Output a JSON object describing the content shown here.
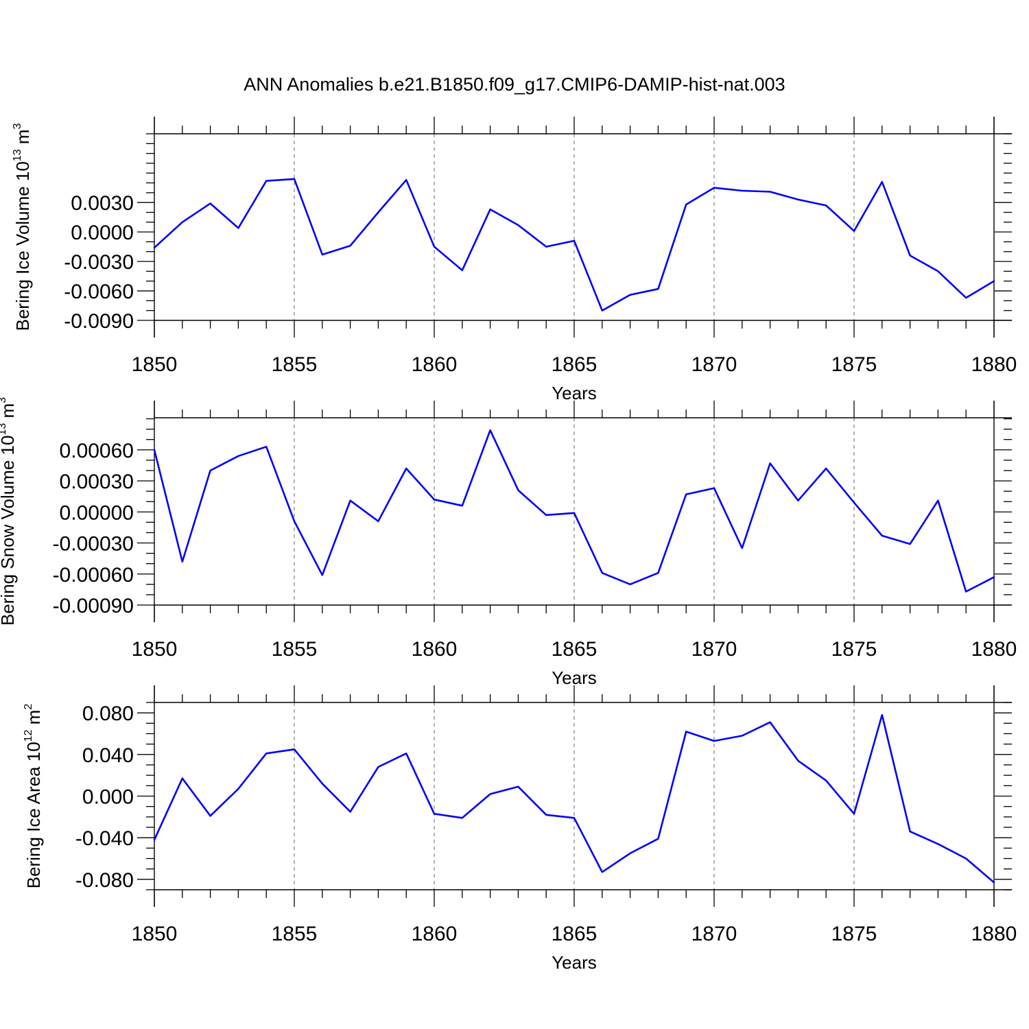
{
  "title": "ANN Anomalies b.e21.B1850.f09_g17.CMIP6-DAMIP-hist-nat.003",
  "colors": {
    "series": "#0000ff",
    "axes": "#000000",
    "grid": "#808080"
  },
  "chart_data": [
    {
      "type": "line",
      "ylabel": {
        "text": "Bering Ice Volume 10",
        "sup": "13",
        "unit": " m",
        "unit_sup": "3"
      },
      "xlabel": "Years",
      "xlim": [
        1850,
        1880
      ],
      "ylim": [
        -0.009,
        0.01
      ],
      "yticks": [
        -0.009,
        -0.006,
        -0.003,
        0.0,
        0.003
      ],
      "ytick_labels": [
        "-0.0090",
        "-0.0060",
        "-0.0030",
        "0.0000",
        "0.0030"
      ],
      "ytick_minor_step": 0.001,
      "xticks": [
        1850,
        1855,
        1860,
        1865,
        1870,
        1875,
        1880
      ],
      "xtick_labels": [
        "1850",
        "1855",
        "1860",
        "1865",
        "1870",
        "1875",
        "1880"
      ],
      "grid": "dashed vertical at major x ticks",
      "x": [
        1850,
        1851,
        1852,
        1853,
        1854,
        1855,
        1856,
        1857,
        1858,
        1859,
        1860,
        1861,
        1862,
        1863,
        1864,
        1865,
        1866,
        1867,
        1868,
        1869,
        1870,
        1871,
        1872,
        1873,
        1874,
        1875,
        1876,
        1877,
        1878,
        1879,
        1880
      ],
      "y": [
        -0.0016,
        0.001,
        0.0029,
        0.0004,
        0.0052,
        0.0054,
        -0.0023,
        -0.0014,
        0.002,
        0.0053,
        -0.0015,
        -0.0039,
        0.0023,
        0.0007,
        -0.0015,
        -0.0009,
        -0.008,
        -0.0064,
        -0.0058,
        0.0028,
        0.0045,
        0.0042,
        0.0041,
        0.0033,
        0.0027,
        0.0001,
        0.0051,
        -0.0024,
        -0.004,
        -0.0067,
        -0.005
      ]
    },
    {
      "type": "line",
      "ylabel": {
        "text": "Bering Snow Volume 10",
        "sup": "13",
        "unit": " m",
        "unit_sup": "3"
      },
      "xlabel": "Years",
      "xlim": [
        1850,
        1880
      ],
      "ylim": [
        -0.0009,
        0.00091
      ],
      "yticks": [
        -0.0009,
        -0.0006,
        -0.0003,
        0.0,
        0.0003,
        0.0006
      ],
      "ytick_labels": [
        "-0.00090",
        "-0.00060",
        "-0.00030",
        "0.00000",
        "0.00030",
        "0.00060"
      ],
      "ytick_minor_step": 0.0001,
      "xticks": [
        1850,
        1855,
        1860,
        1865,
        1870,
        1875,
        1880
      ],
      "xtick_labels": [
        "1850",
        "1855",
        "1860",
        "1865",
        "1870",
        "1875",
        "1880"
      ],
      "grid": "dashed vertical at major x ticks",
      "x": [
        1850,
        1851,
        1852,
        1853,
        1854,
        1855,
        1856,
        1857,
        1858,
        1859,
        1860,
        1861,
        1862,
        1863,
        1864,
        1865,
        1866,
        1867,
        1868,
        1869,
        1870,
        1871,
        1872,
        1873,
        1874,
        1875,
        1876,
        1877,
        1878,
        1879,
        1880
      ],
      "y": [
        0.0006,
        -0.00048,
        0.0004,
        0.00054,
        0.00063,
        -9e-05,
        -0.00061,
        0.00011,
        -9e-05,
        0.00042,
        0.00012,
        6e-05,
        0.00079,
        0.00021,
        -3e-05,
        -1e-05,
        -0.00059,
        -0.0007,
        -0.00059,
        0.00017,
        0.00023,
        -0.00035,
        0.00047,
        0.00011,
        0.00042,
        9e-05,
        -0.00023,
        -0.00031,
        0.00011,
        -0.00077,
        -0.00063
      ]
    },
    {
      "type": "line",
      "ylabel": {
        "text": "Bering Ice Area 10",
        "sup": "12",
        "unit": " m",
        "unit_sup": "2"
      },
      "xlabel": "Years",
      "xlim": [
        1850,
        1880
      ],
      "ylim": [
        -0.09,
        0.09
      ],
      "yticks": [
        -0.08,
        -0.04,
        0.0,
        0.04,
        0.08
      ],
      "ytick_labels": [
        "-0.080",
        "-0.040",
        "0.000",
        "0.040",
        "0.080"
      ],
      "ytick_minor_step": 0.01,
      "xticks": [
        1850,
        1855,
        1860,
        1865,
        1870,
        1875,
        1880
      ],
      "xtick_labels": [
        "1850",
        "1855",
        "1860",
        "1865",
        "1870",
        "1875",
        "1880"
      ],
      "grid": "dashed vertical at major x ticks",
      "x": [
        1850,
        1851,
        1852,
        1853,
        1854,
        1855,
        1856,
        1857,
        1858,
        1859,
        1860,
        1861,
        1862,
        1863,
        1864,
        1865,
        1866,
        1867,
        1868,
        1869,
        1870,
        1871,
        1872,
        1873,
        1874,
        1875,
        1876,
        1877,
        1878,
        1879,
        1880
      ],
      "y": [
        -0.042,
        0.017,
        -0.019,
        0.007,
        0.041,
        0.045,
        0.012,
        -0.015,
        0.028,
        0.041,
        -0.017,
        -0.021,
        0.002,
        0.009,
        -0.018,
        -0.021,
        -0.073,
        -0.055,
        -0.041,
        0.062,
        0.053,
        0.058,
        0.071,
        0.034,
        0.015,
        -0.017,
        0.078,
        -0.034,
        -0.046,
        -0.06,
        -0.083
      ]
    }
  ]
}
